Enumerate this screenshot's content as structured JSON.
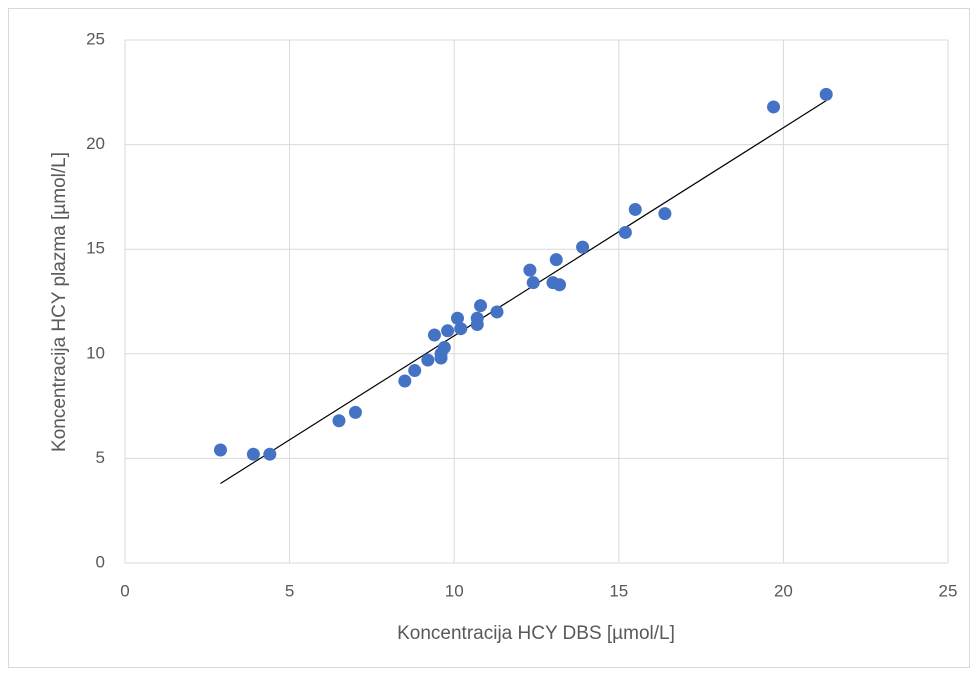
{
  "chart_data": {
    "type": "scatter",
    "x_label": "Koncentracija HCY DBS [µmol/L]",
    "y_label": "Koncentracija HCY plazma [µmol/L]",
    "series": [
      {
        "color": "#4472c4",
        "x": [
          2.9,
          3.9,
          4.4,
          6.5,
          7.0,
          8.5,
          8.8,
          9.2,
          9.4,
          9.6,
          9.6,
          9.7,
          9.8,
          10.1,
          10.2,
          10.7,
          10.7,
          10.8,
          11.3,
          12.3,
          12.4,
          13.0,
          13.1,
          13.2,
          13.9,
          15.2,
          15.5,
          16.4,
          19.7,
          21.3
        ],
        "values": [
          5.4,
          5.2,
          5.2,
          6.8,
          7.2,
          8.7,
          9.2,
          9.7,
          10.9,
          9.8,
          10.0,
          10.3,
          11.1,
          11.7,
          11.2,
          11.4,
          11.7,
          12.3,
          12.0,
          14.0,
          13.4,
          13.4,
          14.5,
          13.3,
          15.1,
          15.8,
          16.9,
          16.7,
          21.8,
          22.4
        ]
      }
    ],
    "trendline": {
      "color": "#000000",
      "x": [
        2.9,
        21.3
      ],
      "values": [
        3.8,
        22.1
      ]
    },
    "xlim": [
      0,
      25
    ],
    "xticks": [
      0,
      5,
      10,
      15,
      20,
      25
    ],
    "ylim": [
      0,
      25
    ],
    "yticks": [
      0,
      5,
      10,
      15,
      20,
      25
    ],
    "grid": true
  }
}
